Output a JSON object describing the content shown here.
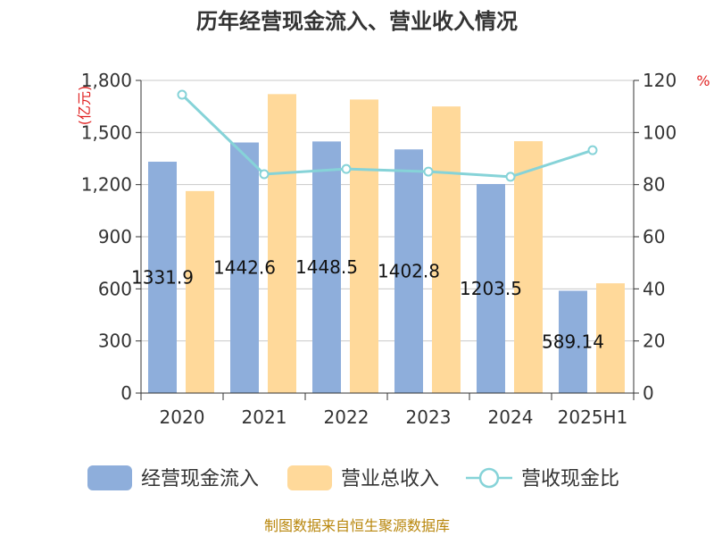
{
  "chart_data": {
    "type": "bar",
    "title": "历年经营现金流入、营业收入情况",
    "categories": [
      "2020",
      "2021",
      "2022",
      "2023",
      "2024",
      "2025H1"
    ],
    "series": [
      {
        "name": "经营现金流入",
        "kind": "bar",
        "axis": "left",
        "color": "#8eaedb",
        "values": [
          1331.9,
          1442.6,
          1448.5,
          1402.8,
          1203.5,
          589.1
        ],
        "labels": [
          "1331.9",
          "1442.6",
          "1448.5",
          "1402.8",
          "1203.5",
          "589.14"
        ]
      },
      {
        "name": "营业总收入",
        "kind": "bar",
        "axis": "left",
        "color": "#ffd99a",
        "values": [
          1163,
          1721,
          1690,
          1650,
          1450,
          632
        ]
      },
      {
        "name": "营收现金比",
        "kind": "line",
        "axis": "right",
        "color": "#86d3d8",
        "values": [
          114.5,
          84,
          86,
          85,
          83,
          93.2
        ]
      }
    ],
    "y_left": {
      "unit": "(亿元)",
      "min": 0,
      "max": 1800,
      "ticks": [
        0,
        300,
        600,
        900,
        1200,
        1500,
        1800
      ],
      "tick_labels": [
        "0",
        "300",
        "600",
        "900",
        "1,200",
        "1,500",
        "1,800"
      ]
    },
    "y_right": {
      "unit": "%",
      "min": 0,
      "max": 120,
      "ticks": [
        0,
        20,
        40,
        60,
        80,
        100,
        120
      ]
    },
    "grid": true,
    "legend_position": "bottom"
  },
  "source": "制图数据来自恒生聚源数据库"
}
